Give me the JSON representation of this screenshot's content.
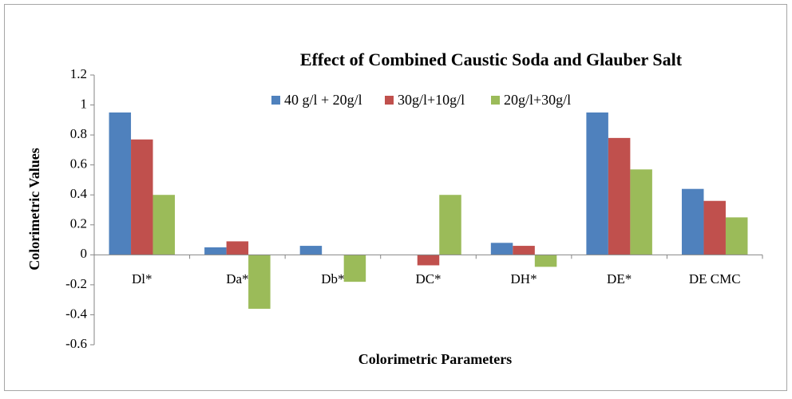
{
  "chart_data": {
    "type": "bar",
    "title": "Effect of Combined Caustic Soda and Glauber Salt",
    "x_label": "Colorimetric  Parameters",
    "y_label": "Colorimetric  Values",
    "categories": [
      "Dl*",
      "Da*",
      "Db*",
      "DC*",
      "DH*",
      "DE*",
      "DE CMC"
    ],
    "series": [
      {
        "name": "40 g/l  + 20g/l",
        "color": "#4f81bd",
        "values": [
          0.95,
          0.05,
          0.06,
          0,
          0.08,
          0.95,
          0.44
        ]
      },
      {
        "name": "30g/l+10g/l",
        "color": "#c0504d",
        "values": [
          0.77,
          0.09,
          0,
          -0.07,
          0.06,
          0.78,
          0.36
        ]
      },
      {
        "name": "20g/l+30g/l",
        "color": "#9bbb59",
        "values": [
          0.4,
          -0.36,
          -0.18,
          0.4,
          -0.08,
          0.57,
          0.25
        ]
      }
    ],
    "ylim": [
      -0.6,
      1.2
    ],
    "yticks": [
      -0.6,
      -0.4,
      -0.2,
      0,
      0.2,
      0.4,
      0.6,
      0.8,
      1,
      1.2
    ],
    "grid": false,
    "legend": "top"
  }
}
